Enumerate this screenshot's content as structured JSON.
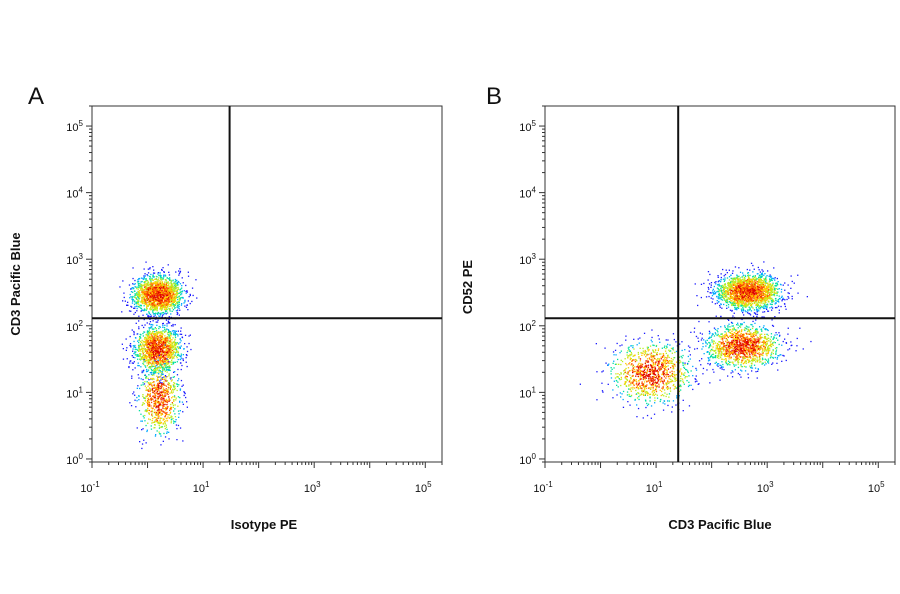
{
  "chart_data": [
    {
      "type": "scatter",
      "panel_label": "A",
      "xlabel": "Isotype PE",
      "ylabel": "CD3 Pacific Blue",
      "x_scale": "log",
      "y_scale": "log",
      "xlim": [
        0.1,
        200000
      ],
      "ylim": [
        0.9,
        200000
      ],
      "x_ticks": [
        {
          "base": "10",
          "exp": "-1"
        },
        {
          "base": "10",
          "exp": "1"
        },
        {
          "base": "10",
          "exp": "3"
        },
        {
          "base": "10",
          "exp": "5"
        }
      ],
      "y_ticks": [
        {
          "base": "10",
          "exp": "0"
        },
        {
          "base": "10",
          "exp": "1"
        },
        {
          "base": "10",
          "exp": "2"
        },
        {
          "base": "10",
          "exp": "3"
        },
        {
          "base": "10",
          "exp": "4"
        },
        {
          "base": "10",
          "exp": "5"
        }
      ],
      "gate": {
        "x": 30,
        "y": 130
      },
      "populations": [
        {
          "x_center": 1.5,
          "y_center": 300,
          "x_spread": 0.22,
          "y_spread": 0.14,
          "count": 1700
        },
        {
          "x_center": 1.5,
          "y_center": 45,
          "x_spread": 0.2,
          "y_spread": 0.17,
          "count": 1400
        },
        {
          "x_center": 1.6,
          "y_center": 8,
          "x_spread": 0.18,
          "y_spread": 0.25,
          "count": 700
        }
      ],
      "density_colormap": [
        "#1a1aff",
        "#00a8ff",
        "#00e0a0",
        "#b8ee20",
        "#ffcc00",
        "#ff5500",
        "#dd0000"
      ]
    },
    {
      "type": "scatter",
      "panel_label": "B",
      "xlabel": "CD3 Pacific Blue",
      "ylabel": "CD52 PE",
      "x_scale": "log",
      "y_scale": "log",
      "xlim": [
        0.1,
        200000
      ],
      "ylim": [
        0.9,
        200000
      ],
      "x_ticks": [
        {
          "base": "10",
          "exp": "-1"
        },
        {
          "base": "10",
          "exp": "1"
        },
        {
          "base": "10",
          "exp": "3"
        },
        {
          "base": "10",
          "exp": "5"
        }
      ],
      "y_ticks": [
        {
          "base": "10",
          "exp": "0"
        },
        {
          "base": "10",
          "exp": "1"
        },
        {
          "base": "10",
          "exp": "2"
        },
        {
          "base": "10",
          "exp": "3"
        },
        {
          "base": "10",
          "exp": "4"
        },
        {
          "base": "10",
          "exp": "5"
        }
      ],
      "gate": {
        "x": 25,
        "y": 130
      },
      "populations": [
        {
          "x_center": 450,
          "y_center": 330,
          "x_spread": 0.28,
          "y_spread": 0.13,
          "count": 1900
        },
        {
          "x_center": 350,
          "y_center": 50,
          "x_spread": 0.32,
          "y_spread": 0.16,
          "count": 1300
        },
        {
          "x_center": 8,
          "y_center": 20,
          "x_spread": 0.35,
          "y_spread": 0.22,
          "count": 1000
        }
      ],
      "density_colormap": [
        "#1a1aff",
        "#00a8ff",
        "#00e0a0",
        "#b8ee20",
        "#ffcc00",
        "#ff5500",
        "#dd0000"
      ]
    }
  ]
}
